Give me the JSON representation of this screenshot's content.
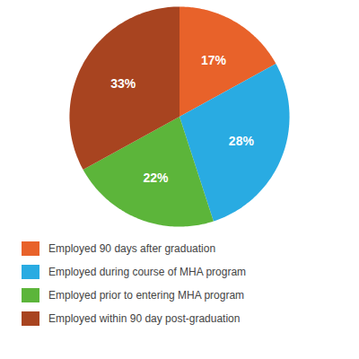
{
  "chart_data": {
    "type": "pie",
    "categories": [
      "Employed 90 days after graduation",
      "Employed during course of MHA program",
      "Employed prior to entering MHA program",
      "Employed within 90 day post-graduation"
    ],
    "values": [
      17,
      28,
      22,
      33
    ],
    "value_labels": [
      "17%",
      "28%",
      "22%",
      "33%"
    ],
    "colors": [
      "#E8622A",
      "#29ABE2",
      "#5CB53A",
      "#A84420"
    ],
    "data_labels": true,
    "legend": "bottom"
  }
}
